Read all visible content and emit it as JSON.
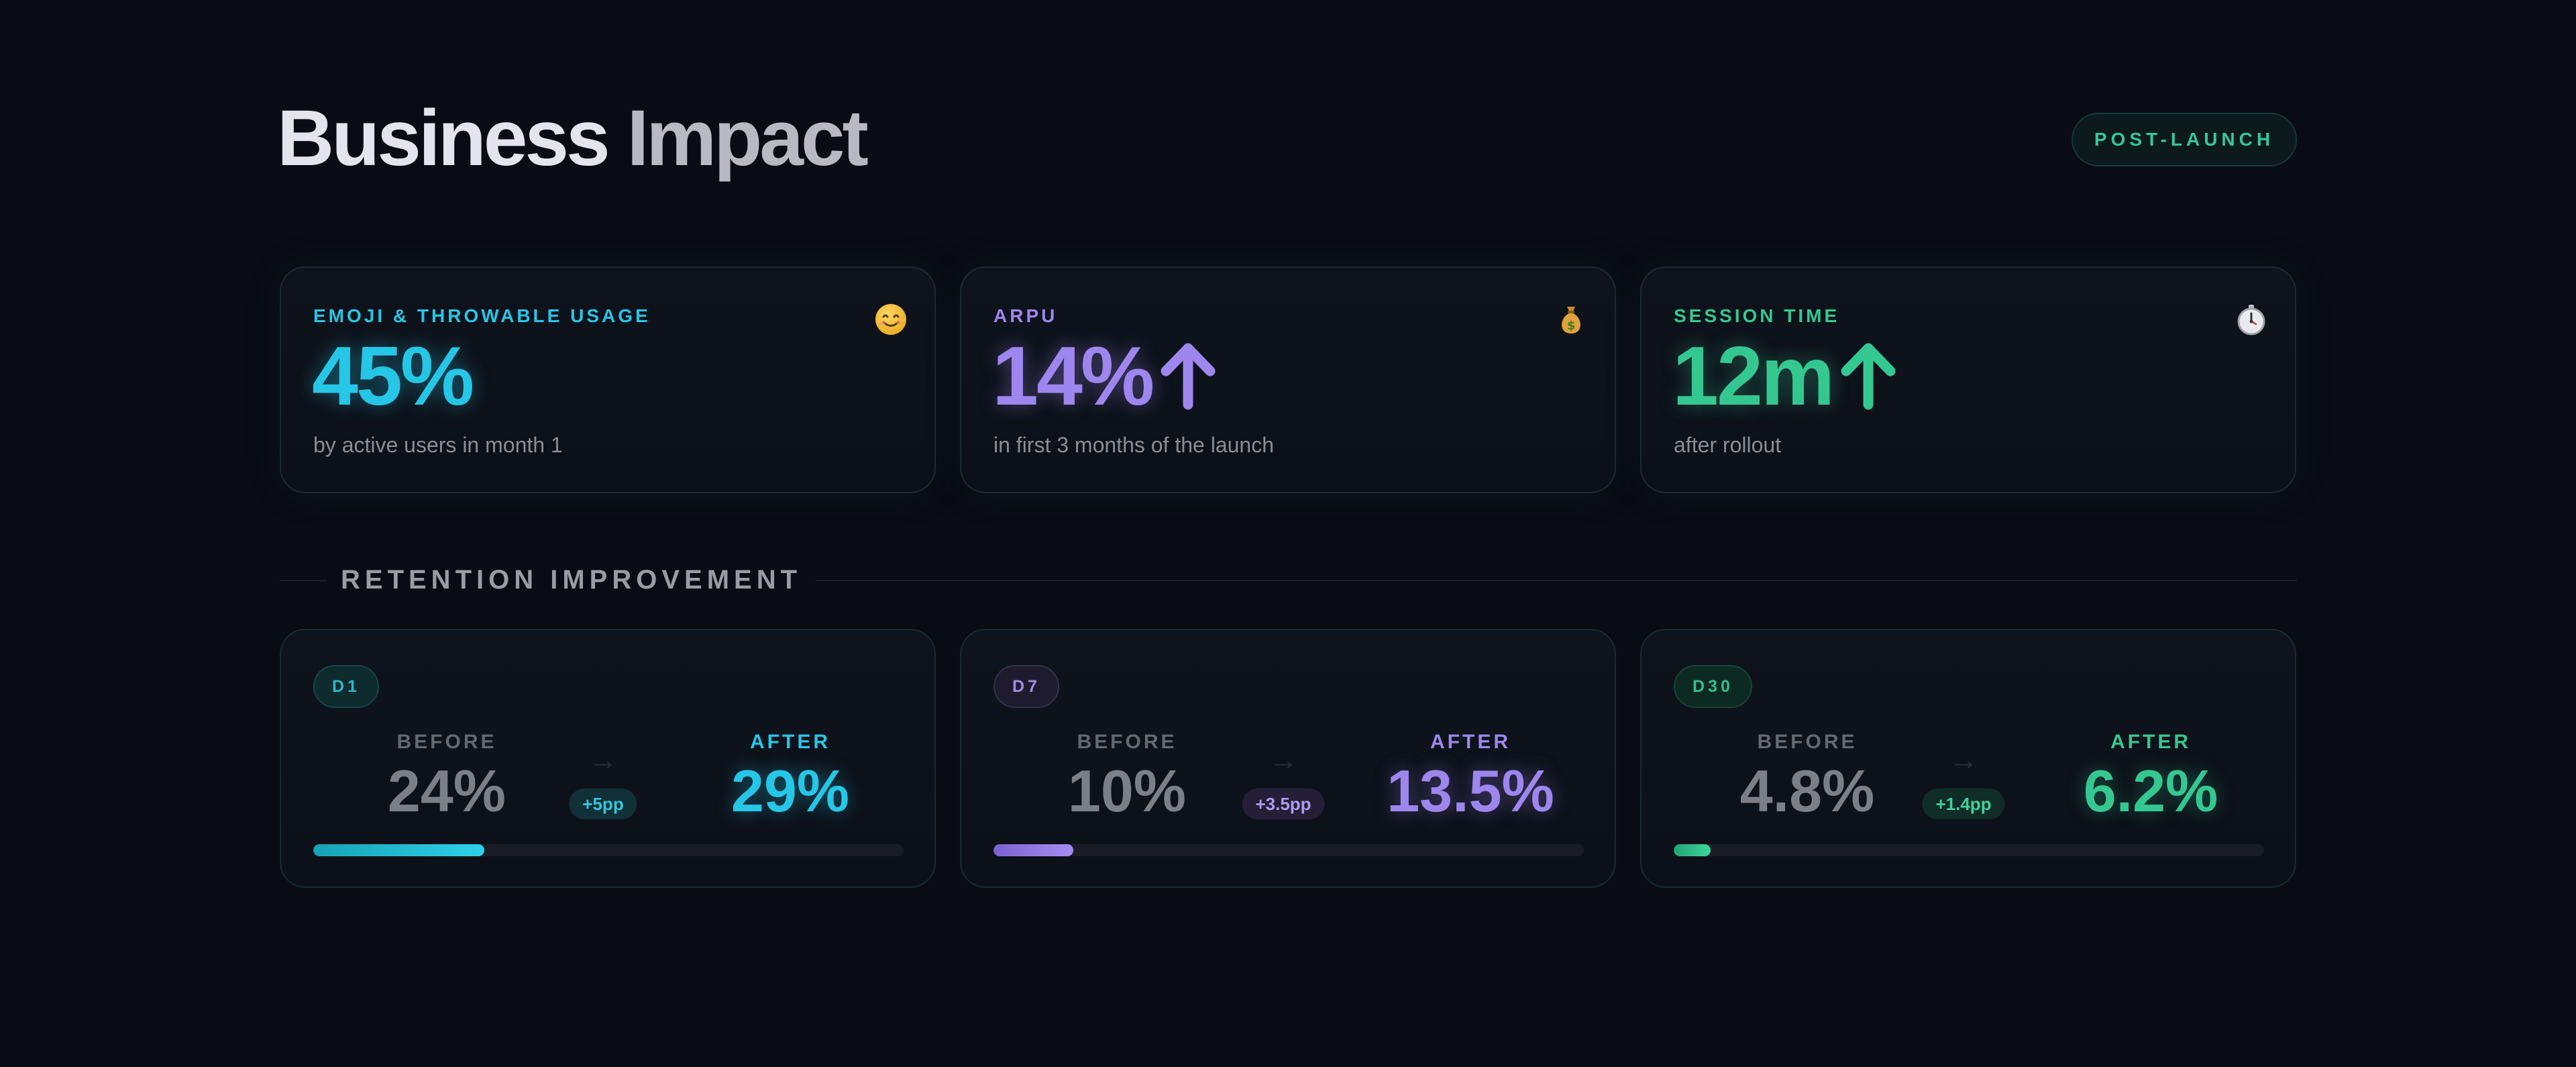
{
  "header": {
    "title_part1": "Business",
    "title_part2": "Impact",
    "badge": "POST-LAUNCH"
  },
  "colors": {
    "cyan": "#26c6e6",
    "purple": "#9d86ee",
    "green": "#34c890",
    "background": "#0a0c13"
  },
  "kpis": [
    {
      "label": "EMOJI & THROWABLE USAGE",
      "value": "45%",
      "subtitle": "by active users in month 1",
      "icon": "smiley-face-icon",
      "icon_glyph": "😊",
      "trend_up": false
    },
    {
      "label": "ARPU",
      "value": "14%",
      "subtitle": "in first 3 months of the launch",
      "icon": "money-bag-icon",
      "icon_glyph": "💰",
      "trend_up": true
    },
    {
      "label": "SESSION TIME",
      "value": "12m",
      "subtitle": "after rollout",
      "icon": "stopwatch-icon",
      "icon_glyph": "⏱",
      "trend_up": true
    }
  ],
  "retention": {
    "section_title": "RETENTION IMPROVEMENT",
    "before_label": "BEFORE",
    "after_label": "AFTER",
    "arrow_glyph": "→",
    "cards": [
      {
        "period": "D1",
        "before": "24%",
        "after": "29%",
        "delta": "+5pp",
        "progress_percent": 29
      },
      {
        "period": "D7",
        "before": "10%",
        "after": "13.5%",
        "delta": "+3.5pp",
        "progress_percent": 13.5
      },
      {
        "period": "D30",
        "before": "4.8%",
        "after": "6.2%",
        "delta": "+1.4pp",
        "progress_percent": 6.2
      }
    ]
  }
}
